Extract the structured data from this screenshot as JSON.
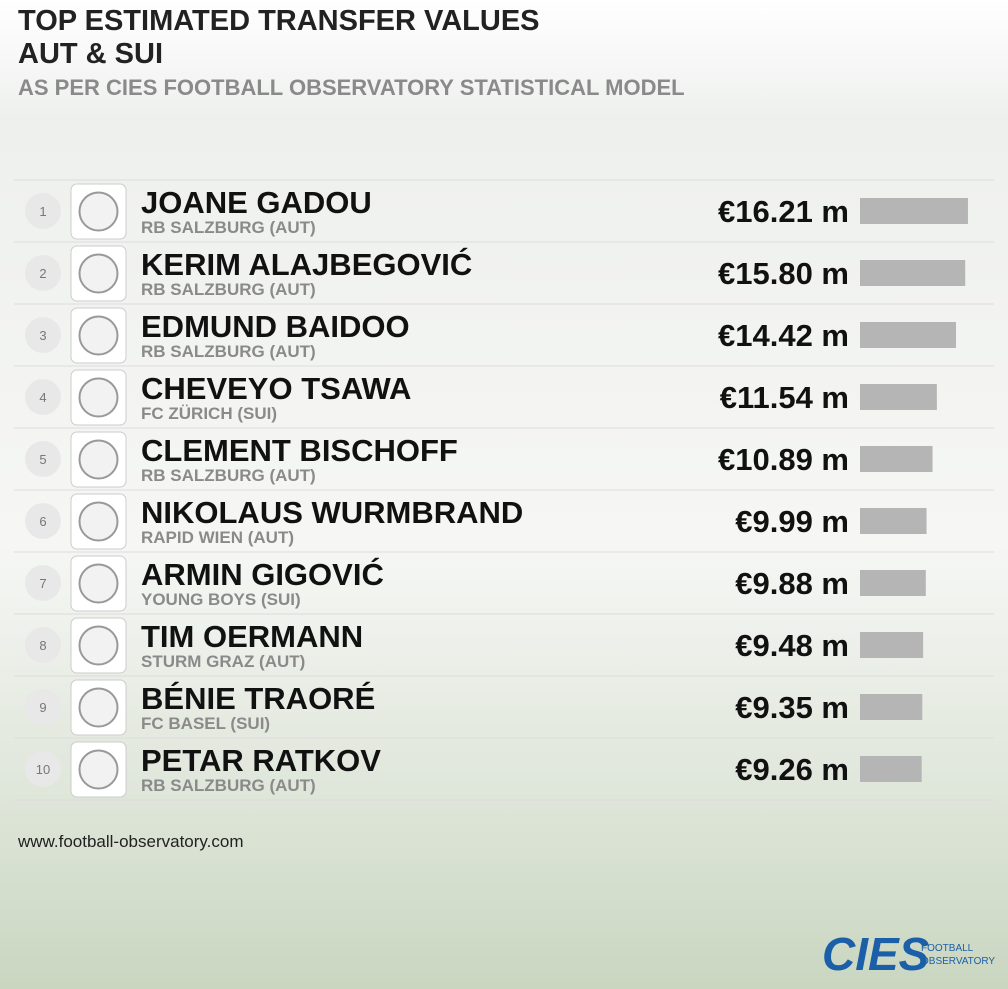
{
  "chart_data": {
    "type": "bar",
    "title": "TOP ESTIMATED TRANSFER VALUES",
    "title2": "AUT & SUI",
    "subtitle": "AS PER CIES FOOTBALL OBSERVATORY STATISTICAL MODEL",
    "ranks": [
      1,
      2,
      3,
      4,
      5,
      6,
      7,
      8,
      9,
      10
    ],
    "categories": [
      "JOANE GADOU",
      "KERIM ALAJBEGOVIĆ",
      "EDMUND BAIDOO",
      "CHEVEYO TSAWA",
      "CLEMENT BISCHOFF",
      "NIKOLAUS WURMBRAND",
      "ARMIN GIGOVIĆ",
      "TIM OERMANN",
      "BÉNIE TRAORÉ",
      "PETAR RATKOV"
    ],
    "clubs": [
      "RB SALZBURG (AUT)",
      "RB SALZBURG (AUT)",
      "RB SALZBURG (AUT)",
      "FC ZÜRICH (SUI)",
      "RB SALZBURG (AUT)",
      "RAPID WIEN (AUT)",
      "YOUNG BOYS (SUI)",
      "STURM GRAZ (AUT)",
      "FC BASEL (SUI)",
      "RB SALZBURG (AUT)"
    ],
    "values": [
      16.21,
      15.8,
      14.42,
      11.54,
      10.89,
      9.99,
      9.88,
      9.48,
      9.35,
      9.26
    ],
    "value_labels": [
      "€16.21 m",
      "€15.80 m",
      "€14.42 m",
      "€11.54 m",
      "€10.89 m",
      "€9.99 m",
      "€9.88 m",
      "€9.48 m",
      "€9.35 m",
      "€9.26 m"
    ],
    "color": "#b5b5b5"
  },
  "footer": {
    "url": "www.football-observatory.com",
    "logo": "CIES",
    "logo_text": [
      "FOOTBALL",
      "OBSERVATORY"
    ]
  }
}
